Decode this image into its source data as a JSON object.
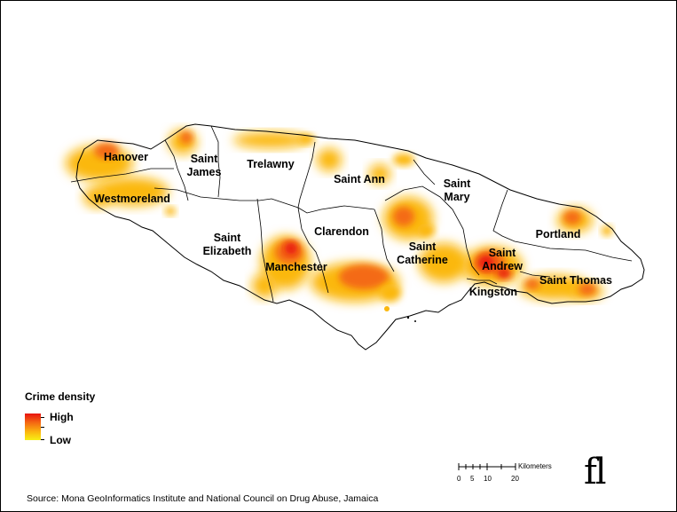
{
  "map": {
    "parishes": {
      "hanover": "Hanover",
      "saint_james_1": "Saint",
      "saint_james_2": "James",
      "trelawny": "Trelawny",
      "saint_ann": "Saint Ann",
      "saint_mary_1": "Saint",
      "saint_mary_2": "Mary",
      "westmoreland": "Westmoreland",
      "portland": "Portland",
      "saint_elizabeth_1": "Saint",
      "saint_elizabeth_2": "Elizabeth",
      "clarendon": "Clarendon",
      "manchester": "Manchester",
      "saint_catherine_1": "Saint",
      "saint_catherine_2": "Catherine",
      "saint_andrew_1": "Saint",
      "saint_andrew_2": "Andrew",
      "kingston": "Kingston",
      "saint_thomas": "Saint Thomas"
    },
    "density_colors": {
      "high": "#e8130f",
      "mid": "#f46a12",
      "low": "#fbb80f",
      "lowest": "#f7f016"
    }
  },
  "legend": {
    "title": "Crime density",
    "high_label": "High",
    "low_label": "Low"
  },
  "scale_bar": {
    "unit": "Kilometers",
    "ticks": [
      "0",
      "5",
      "10",
      "20"
    ]
  },
  "logo_text": "fl",
  "source": "Source: Mona GeoInformatics Institute and National Council on Drug Abuse, Jamaica"
}
